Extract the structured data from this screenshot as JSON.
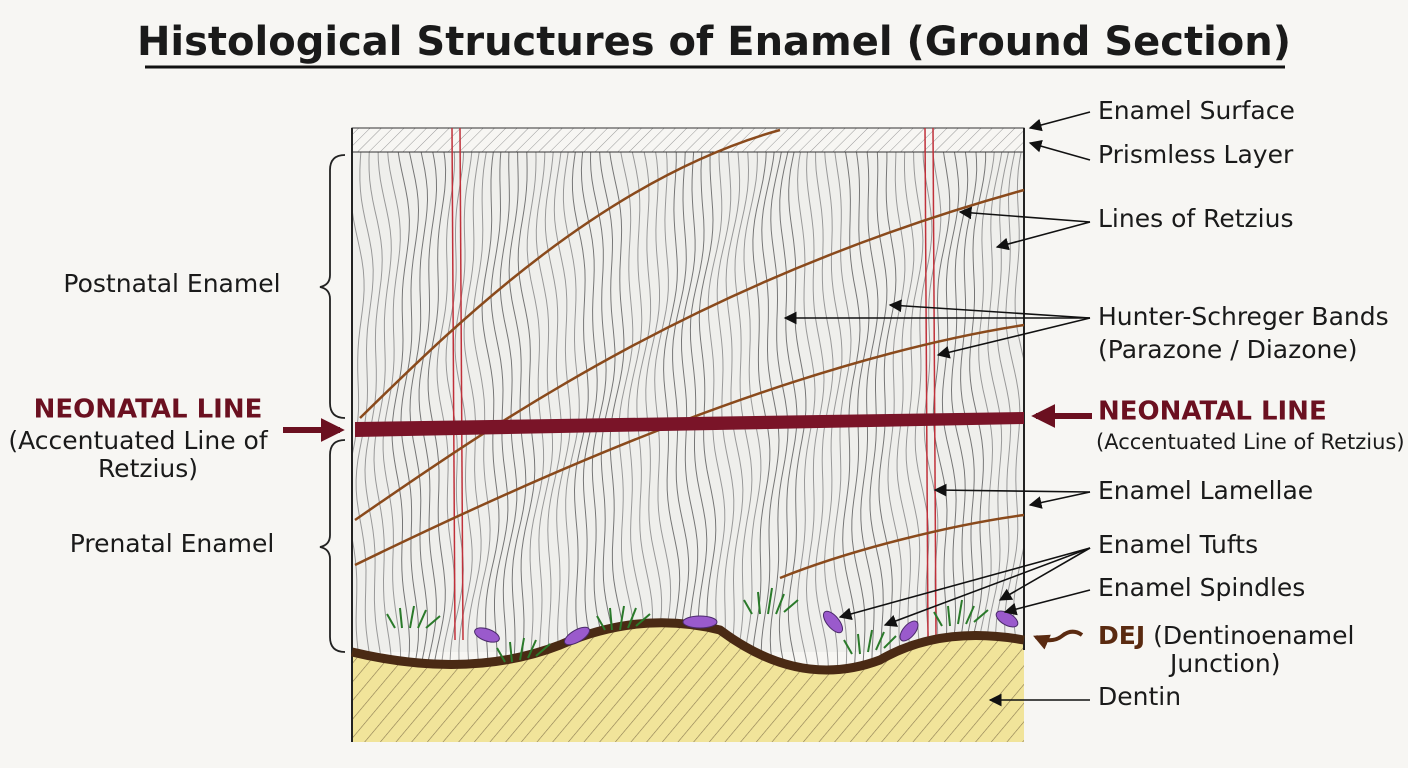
{
  "header": {
    "title": "Histological Structures of Enamel (Ground Section)"
  },
  "left_labels": {
    "postnatal": "Postnatal Enamel",
    "neonatal": "NEONATAL LINE",
    "neonatal_note_1": "(Accentuated Line of",
    "neonatal_note_2": "Retzius)",
    "prenatal": "Prenatal Enamel"
  },
  "right_labels": {
    "surface": "Enamel Surface",
    "prismless": "Prismless Layer",
    "retzius": "Lines of Retzius",
    "hunter": "Hunter-Schreger Bands",
    "hunter_note": "(Parazone / Diazone)",
    "neonatal": "NEONATAL LINE",
    "neonatal_note": "(Accentuated Line of Retzius)",
    "lamellae": "Enamel Lamellae",
    "tufts": "Enamel Tufts",
    "spindles": "Enamel Spindles",
    "dej": "DEJ",
    "dej_note_1": "(Dentinoenamel",
    "dej_note_2": "Junction)",
    "dentin": "Dentin"
  }
}
